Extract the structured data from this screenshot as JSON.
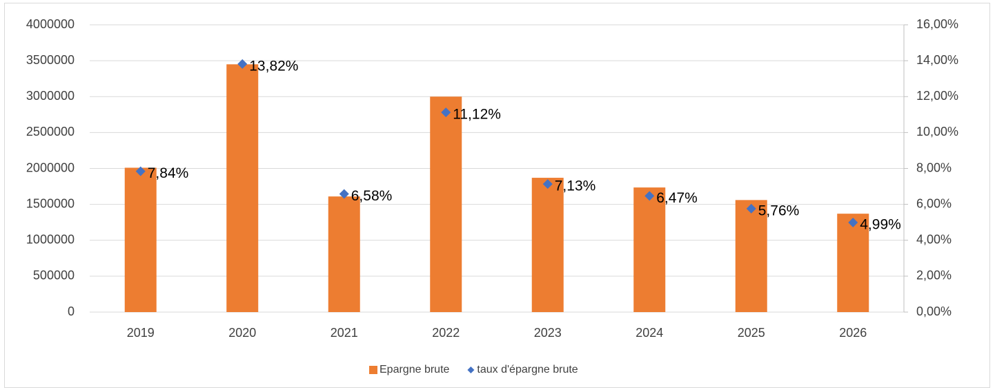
{
  "chart_data": {
    "type": "bar",
    "categories": [
      "2019",
      "2020",
      "2021",
      "2022",
      "2023",
      "2024",
      "2025",
      "2026"
    ],
    "series": [
      {
        "name": "Epargne brute",
        "type": "bar",
        "color": "#ed7d31",
        "values": [
          2010000,
          3450000,
          1610000,
          3000000,
          1870000,
          1735000,
          1560000,
          1370000
        ]
      },
      {
        "name": "taux d'épargne brute",
        "type": "scatter",
        "axis": "y2",
        "color": "#4472c4",
        "values": [
          7.84,
          13.82,
          6.58,
          11.12,
          7.13,
          6.47,
          5.76,
          4.99
        ],
        "value_labels": [
          "7,84%",
          "13,82%",
          "6,58%",
          "11,12%",
          "7,13%",
          "6,47%",
          "5,76%",
          "4,99%"
        ]
      }
    ],
    "ylim": [
      0,
      4000000
    ],
    "yticks": [
      0,
      500000,
      1000000,
      1500000,
      2000000,
      2500000,
      3000000,
      3500000,
      4000000
    ],
    "y2lim": [
      0,
      16
    ],
    "y2ticks": [
      {
        "value": 0,
        "label": "0,00%"
      },
      {
        "value": 2,
        "label": "2,00%"
      },
      {
        "value": 4,
        "label": "4,00%"
      },
      {
        "value": 6,
        "label": "6,00%"
      },
      {
        "value": 8,
        "label": "8,00%"
      },
      {
        "value": 10,
        "label": "10,00%"
      },
      {
        "value": 12,
        "label": "12,00%"
      },
      {
        "value": 14,
        "label": "14,00%"
      },
      {
        "value": 16,
        "label": "16,00%"
      }
    ],
    "grid": true,
    "legend": "bottom"
  }
}
